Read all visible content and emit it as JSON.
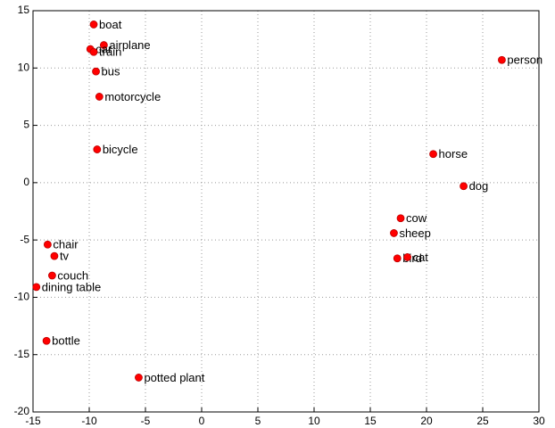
{
  "chart_data": {
    "type": "scatter",
    "labels": [
      "boat",
      "airplane",
      "car",
      "train",
      "bus",
      "motorcycle",
      "bicycle",
      "person",
      "horse",
      "dog",
      "cow",
      "sheep",
      "bird",
      "cat",
      "chair",
      "tv",
      "couch",
      "dining table",
      "bottle",
      "potted plant"
    ],
    "x": [
      -9.6,
      -8.7,
      -9.9,
      -9.6,
      -9.4,
      -9.1,
      -9.3,
      26.7,
      20.6,
      23.3,
      17.7,
      17.1,
      17.4,
      18.3,
      -13.7,
      -13.1,
      -13.3,
      -14.7,
      -13.8,
      -5.6
    ],
    "values": [
      13.8,
      12.0,
      11.65,
      11.4,
      9.7,
      7.5,
      2.9,
      10.7,
      2.5,
      -0.3,
      -3.1,
      -4.4,
      -6.6,
      -6.5,
      -5.4,
      -6.4,
      -8.1,
      -9.1,
      -13.8,
      -17.0
    ],
    "color": "#ff0000",
    "xlim": [
      -15,
      30
    ],
    "xticks": [
      -15,
      -10,
      -5,
      0,
      5,
      10,
      15,
      20,
      25,
      30
    ],
    "ylim": [
      -20,
      15
    ],
    "yticks": [
      -20,
      -15,
      -10,
      -5,
      0,
      5,
      10,
      15
    ],
    "grid": true
  }
}
